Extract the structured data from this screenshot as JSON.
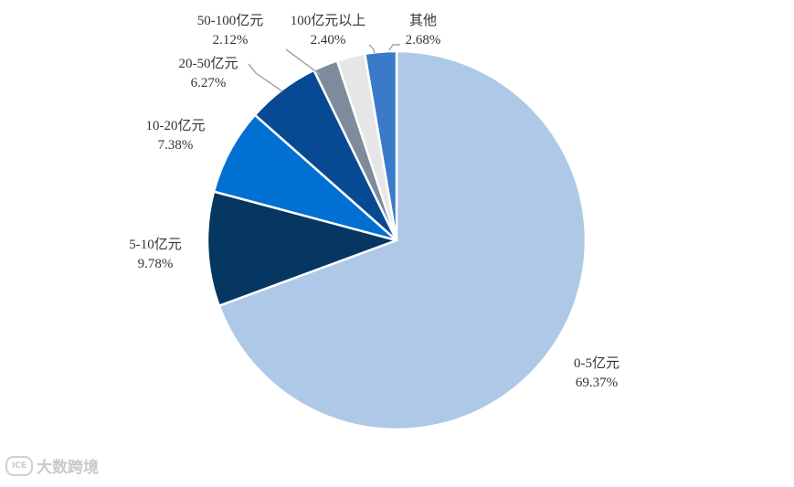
{
  "chart_data": {
    "type": "pie",
    "title": "",
    "slices": [
      {
        "label": "0-5亿元",
        "value": 69.37,
        "value_label": "69.37%",
        "color": "#aec8e8"
      },
      {
        "label": "5-10亿元",
        "value": 9.78,
        "value_label": "9.78%",
        "color": "#063763"
      },
      {
        "label": "10-20亿元",
        "value": 7.38,
        "value_label": "7.38%",
        "color": "#0070d2"
      },
      {
        "label": "20-50亿元",
        "value": 6.27,
        "value_label": "6.27%",
        "color": "#074a93"
      },
      {
        "label": "50-100亿元",
        "value": 2.12,
        "value_label": "2.12%",
        "color": "#7d8b9c"
      },
      {
        "label": "100亿元以上",
        "value": 2.4,
        "value_label": "2.40%",
        "color": "#e6e6e6"
      },
      {
        "label": "其他",
        "value": 2.68,
        "value_label": "2.68%",
        "color": "#3a7ac9"
      }
    ],
    "start": "12 o'clock",
    "direction": "clockwise",
    "legend": "none",
    "labels": "outside, with leader lines for small slices"
  },
  "watermark": {
    "text": "大数跨境",
    "mark": "ICE"
  }
}
